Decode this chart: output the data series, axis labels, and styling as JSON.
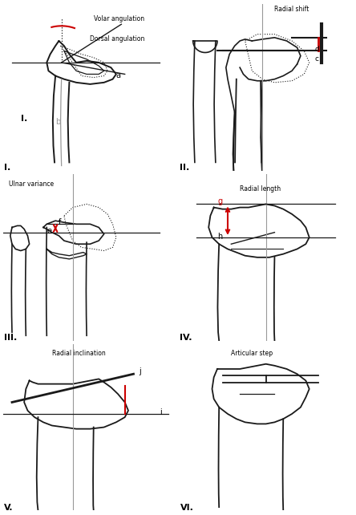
{
  "bg_color": "#ffffff",
  "line_color": "#1a1a1a",
  "red_color": "#cc0000",
  "gray_color": "#999999",
  "panel_labels": [
    "I.",
    "II.",
    "III.",
    "IV.",
    "V.",
    "VI."
  ],
  "label_volar": "Volar angulation",
  "label_dorsal": "Dorsal angulation",
  "label_radial_shift": "Radial shift",
  "label_ulnar_variance": "Ulnar variance",
  "label_radial_length": "Radial length",
  "label_radial_inclination": "Radial inclination",
  "label_articular_step": "Articular step"
}
